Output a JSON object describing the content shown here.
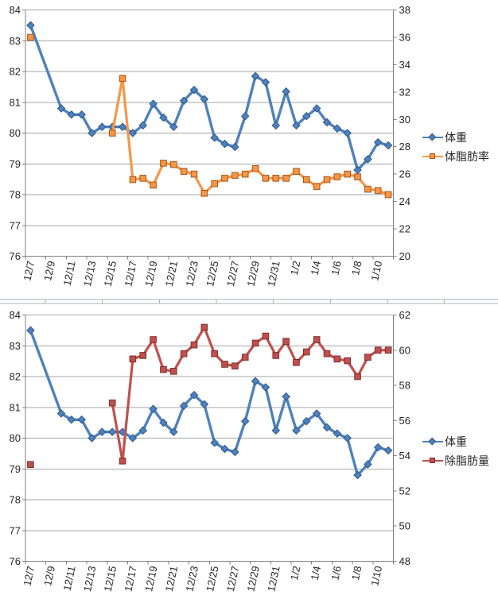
{
  "chart_data": [
    {
      "type": "line",
      "title": "",
      "legend_position": "right",
      "grid": "horizontal",
      "categories": [
        "12/7",
        "12/8",
        "12/9",
        "12/10",
        "12/11",
        "12/12",
        "12/13",
        "12/14",
        "12/15",
        "12/16",
        "12/17",
        "12/18",
        "12/19",
        "12/20",
        "12/21",
        "12/22",
        "12/23",
        "12/24",
        "12/25",
        "12/26",
        "12/27",
        "12/28",
        "12/29",
        "12/30",
        "12/31",
        "1/1",
        "1/2",
        "1/3",
        "1/4",
        "1/5",
        "1/6",
        "1/7",
        "1/8",
        "1/9",
        "1/10",
        "1/11"
      ],
      "x_tick_labels": [
        "12/7",
        "12/9",
        "12/11",
        "12/13",
        "12/15",
        "12/17",
        "12/19",
        "12/21",
        "12/23",
        "12/25",
        "12/27",
        "12/29",
        "12/31",
        "1/2",
        "1/4",
        "1/6",
        "1/8",
        "1/10"
      ],
      "left_axis": {
        "min": 76,
        "max": 84,
        "ticks": [
          84,
          83,
          82,
          81,
          80,
          79,
          78,
          77,
          76
        ]
      },
      "right_axis": {
        "min": 20,
        "max": 38,
        "ticks": [
          38,
          36,
          34,
          32,
          30,
          28,
          26,
          24,
          22,
          20
        ]
      },
      "series": [
        {
          "name": "体重",
          "axis": "left",
          "color": "#4F81BD",
          "marker": "diamond",
          "marker_stroke": "#2F5A8A",
          "connect_gaps": true,
          "values": [
            83.5,
            null,
            null,
            80.8,
            80.6,
            80.6,
            80.0,
            80.2,
            80.2,
            80.2,
            80.0,
            80.25,
            80.95,
            80.5,
            80.2,
            81.05,
            81.4,
            81.1,
            79.85,
            79.65,
            79.55,
            80.55,
            81.85,
            81.65,
            80.25,
            81.35,
            80.25,
            80.55,
            80.8,
            80.35,
            80.15,
            80.0,
            78.8,
            79.15,
            79.7,
            79.6
          ]
        },
        {
          "name": "体脂肪率",
          "axis": "right",
          "color": "#F79646",
          "marker": "square",
          "marker_stroke": "#A5551B",
          "connect_gaps": false,
          "values": [
            36.0,
            null,
            null,
            null,
            null,
            null,
            null,
            null,
            29.0,
            33.0,
            25.6,
            25.7,
            25.2,
            26.8,
            26.7,
            26.2,
            26.0,
            24.6,
            25.3,
            25.7,
            25.9,
            26.0,
            26.4,
            25.7,
            25.7,
            25.7,
            26.2,
            25.6,
            25.1,
            25.6,
            25.8,
            26.0,
            25.8,
            24.9,
            24.8,
            24.5
          ]
        }
      ]
    },
    {
      "type": "line",
      "title": "",
      "legend_position": "right",
      "grid": "horizontal",
      "categories": [
        "12/7",
        "12/8",
        "12/9",
        "12/10",
        "12/11",
        "12/12",
        "12/13",
        "12/14",
        "12/15",
        "12/16",
        "12/17",
        "12/18",
        "12/19",
        "12/20",
        "12/21",
        "12/22",
        "12/23",
        "12/24",
        "12/25",
        "12/26",
        "12/27",
        "12/28",
        "12/29",
        "12/30",
        "12/31",
        "1/1",
        "1/2",
        "1/3",
        "1/4",
        "1/5",
        "1/6",
        "1/7",
        "1/8",
        "1/9",
        "1/10",
        "1/11"
      ],
      "x_tick_labels": [
        "12/7",
        "12/9",
        "12/11",
        "12/13",
        "12/15",
        "12/17",
        "12/19",
        "12/21",
        "12/23",
        "12/25",
        "12/27",
        "12/29",
        "12/31",
        "1/2",
        "1/4",
        "1/6",
        "1/8",
        "1/10"
      ],
      "left_axis": {
        "min": 76,
        "max": 84,
        "ticks": [
          84,
          83,
          82,
          81,
          80,
          79,
          78,
          77,
          76
        ]
      },
      "right_axis": {
        "min": 48,
        "max": 62,
        "ticks": [
          62,
          60,
          58,
          56,
          54,
          52,
          50,
          48
        ]
      },
      "series": [
        {
          "name": "体重",
          "axis": "left",
          "color": "#4F81BD",
          "marker": "diamond",
          "marker_stroke": "#2F5A8A",
          "connect_gaps": true,
          "values": [
            83.5,
            null,
            null,
            80.8,
            80.6,
            80.6,
            80.0,
            80.2,
            80.2,
            80.2,
            80.0,
            80.25,
            80.95,
            80.5,
            80.2,
            81.05,
            81.4,
            81.1,
            79.85,
            79.65,
            79.55,
            80.55,
            81.85,
            81.65,
            80.25,
            81.35,
            80.25,
            80.55,
            80.8,
            80.35,
            80.15,
            80.0,
            78.8,
            79.15,
            79.7,
            79.6
          ]
        },
        {
          "name": "除脂肪量",
          "axis": "right",
          "color": "#C0504D",
          "marker": "square",
          "marker_stroke": "#7F2D2B",
          "connect_gaps": false,
          "values": [
            53.5,
            null,
            null,
            null,
            null,
            null,
            null,
            null,
            57.0,
            53.7,
            59.5,
            59.7,
            60.6,
            58.9,
            58.8,
            59.8,
            60.3,
            61.3,
            59.8,
            59.2,
            59.1,
            59.6,
            60.4,
            60.8,
            59.7,
            60.5,
            59.3,
            59.9,
            60.6,
            59.8,
            59.5,
            59.4,
            58.5,
            59.6,
            60.0,
            60.0
          ]
        }
      ]
    }
  ],
  "style": {
    "grid_color": "#a6a6a6",
    "axis_color": "#808080",
    "divider_color": "#aab0ba",
    "text_color": "#262626"
  }
}
